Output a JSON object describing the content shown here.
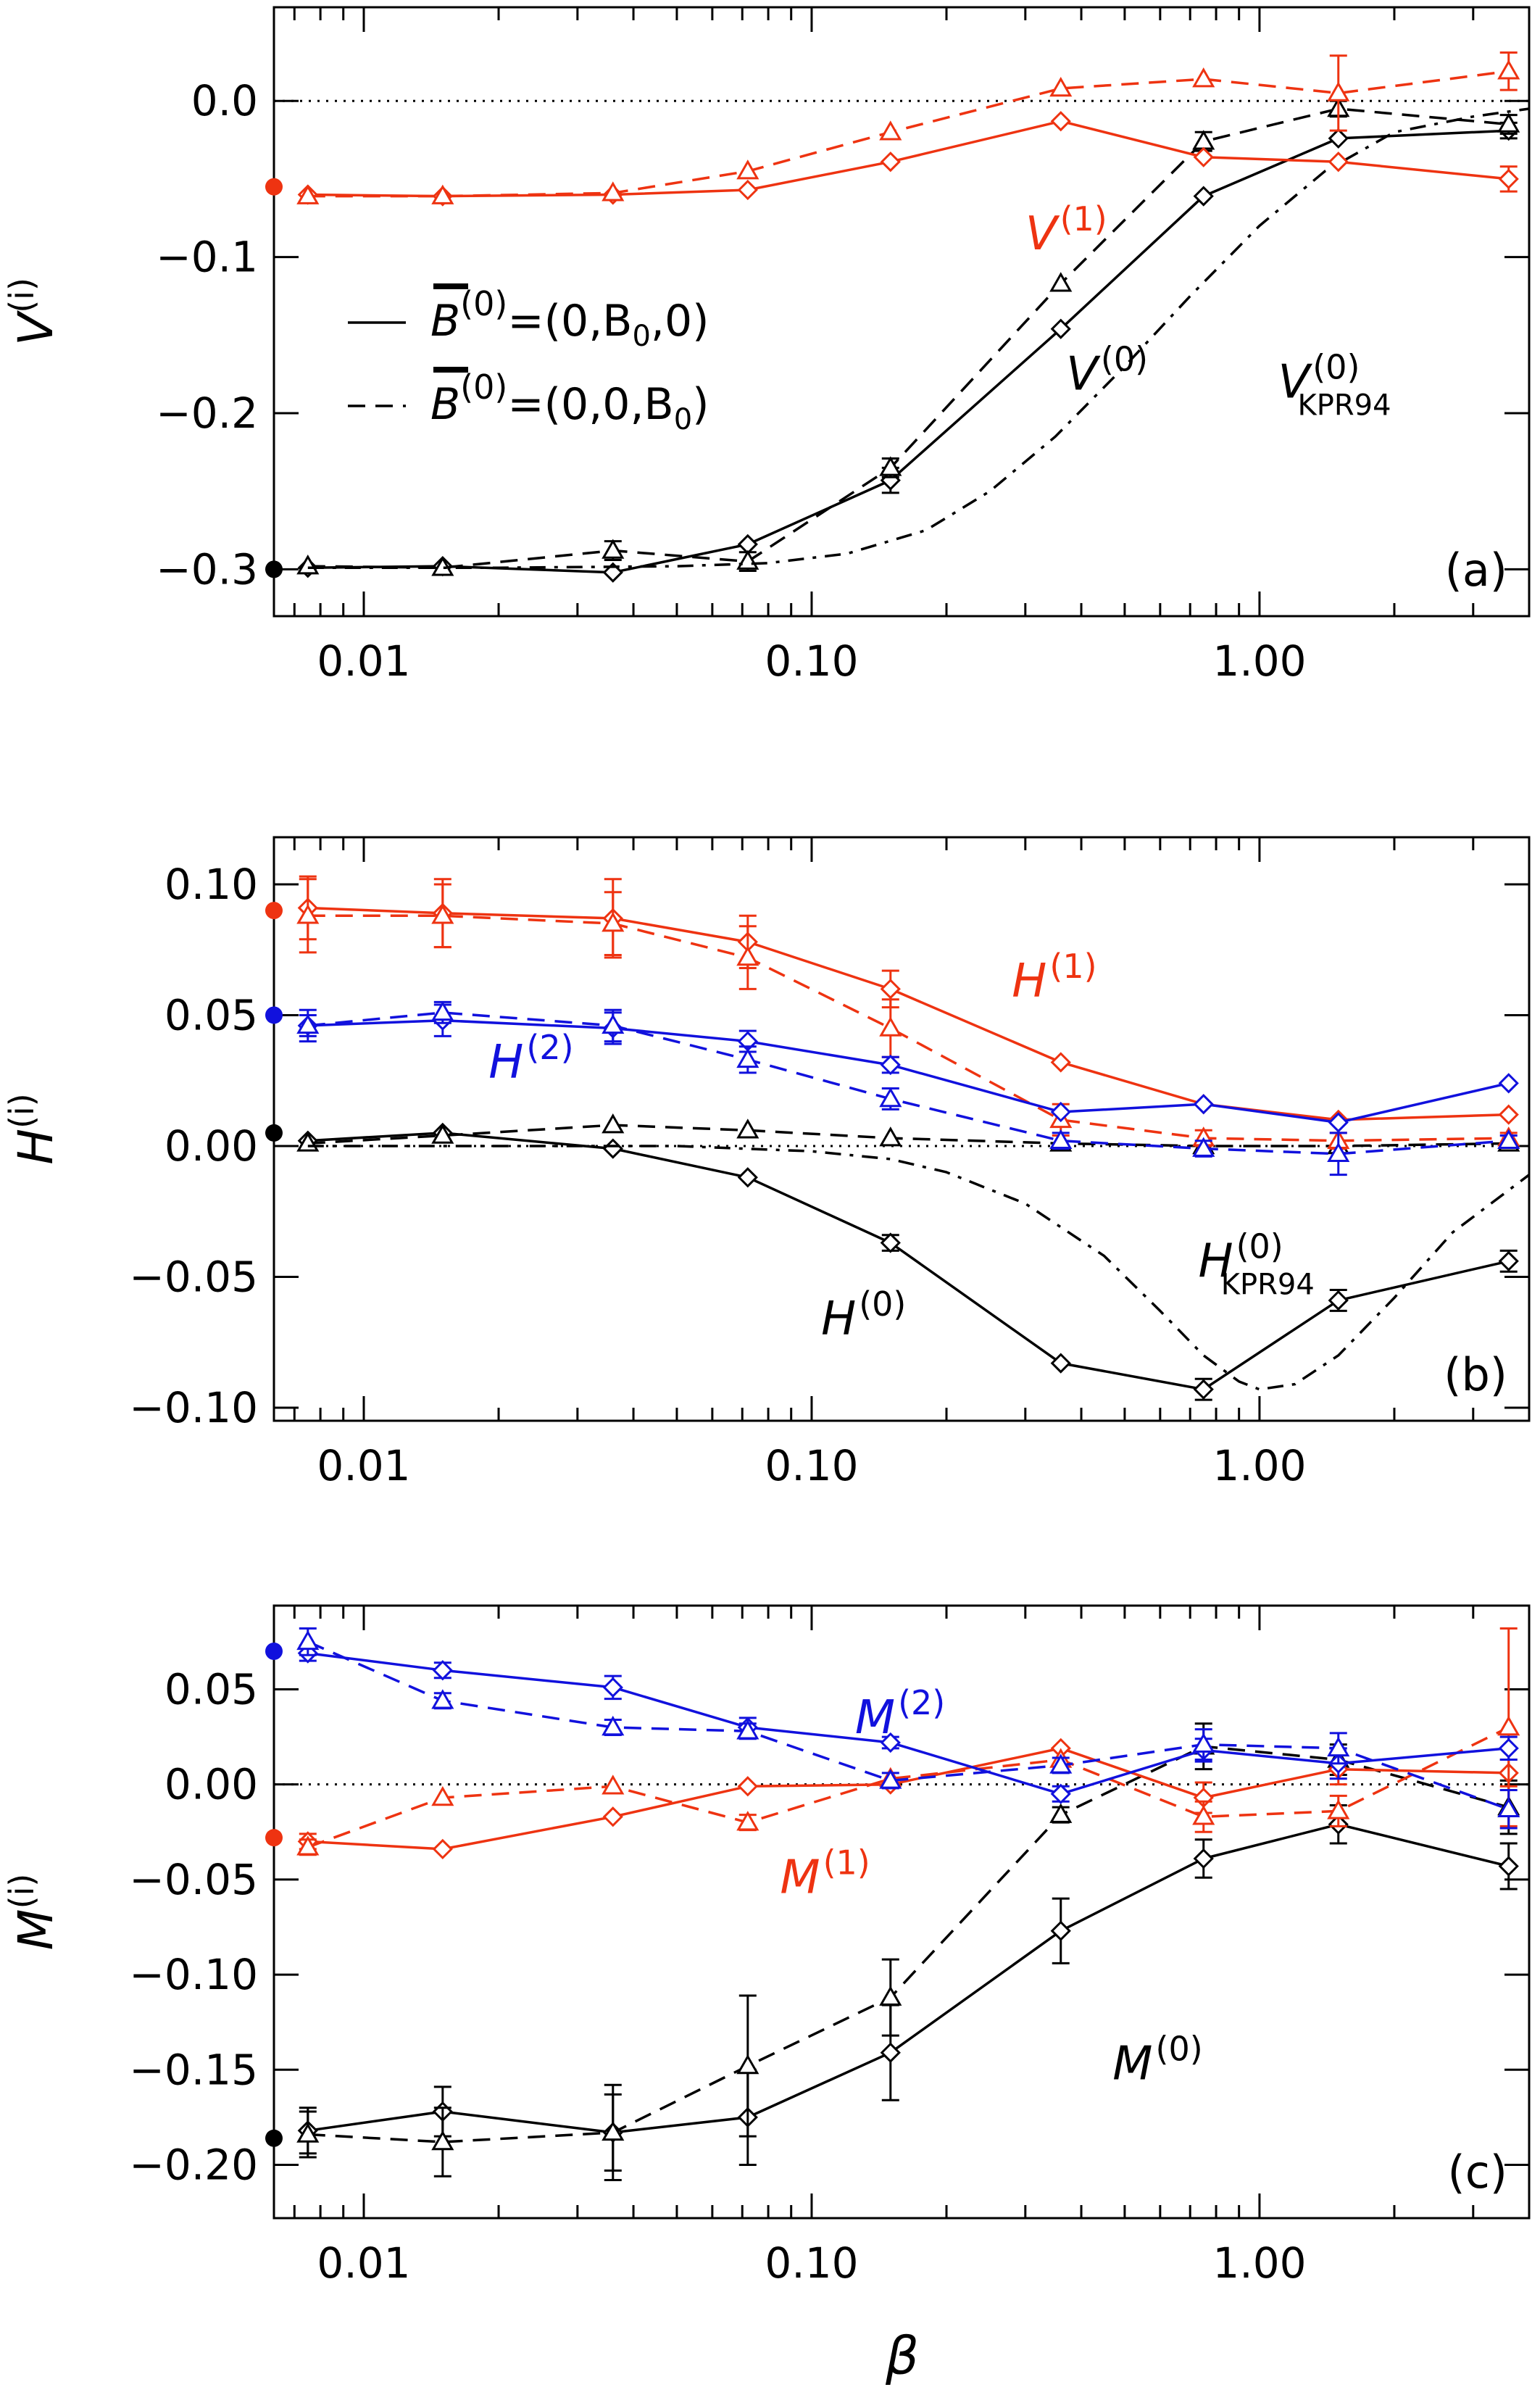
{
  "colors": {
    "black": "#000000",
    "red": "#EE3311",
    "blue": "#1111DD"
  },
  "xlabel": "β",
  "xticks": [
    {
      "value": 0.01,
      "label": "0.01"
    },
    {
      "value": 0.1,
      "label": "0.10"
    },
    {
      "value": 1.0,
      "label": "1.00"
    }
  ],
  "legend": [
    {
      "style": "solid",
      "symbol": "B",
      "sup": "(0)",
      "eq": "=(0,B",
      "sub": "0",
      "tail": ",0)"
    },
    {
      "style": "dashed",
      "symbol": "B",
      "sup": "(0)",
      "eq": "=(0,0,B",
      "sub": "0",
      "tail": ")"
    }
  ],
  "chart_data": [
    {
      "id": "a",
      "type": "line",
      "panel_label": "(a)",
      "ylabel": {
        "base": "V",
        "sup": "(i)"
      },
      "xscale": "log",
      "xlim": [
        0.0063,
        4.0
      ],
      "ylim": [
        -0.33,
        0.06
      ],
      "yticks": [
        {
          "value": 0.0,
          "label": "0.0"
        },
        {
          "value": -0.1,
          "label": "−0.1"
        },
        {
          "value": -0.2,
          "label": "−0.2"
        },
        {
          "value": -0.3,
          "label": "−0.3"
        }
      ],
      "zero_line": true,
      "annotations": [
        {
          "base": "V",
          "sup": "(1)",
          "sub": "",
          "color": "red",
          "x": 0.3,
          "y": -0.095
        },
        {
          "base": "V",
          "sup": "(0)",
          "sub": "",
          "color": "black",
          "x": 0.37,
          "y": -0.185
        },
        {
          "base": "V",
          "sup": "(0)",
          "sub": "KPR94",
          "color": "black",
          "x": 1.1,
          "y": -0.19
        }
      ],
      "reference_markers": [
        {
          "color": "red",
          "y": -0.055
        },
        {
          "color": "black",
          "y": -0.3
        }
      ],
      "series": [
        {
          "color": "black",
          "style": "solid",
          "marker": "diamond",
          "x": [
            0.0075,
            0.015,
            0.036,
            0.072,
            0.15,
            0.36,
            0.75,
            1.5,
            3.6
          ],
          "y": [
            -0.299,
            -0.298,
            -0.302,
            -0.284,
            -0.243,
            -0.146,
            -0.061,
            -0.024,
            -0.019
          ],
          "err": [
            0,
            0,
            0,
            0,
            0.008,
            0,
            0,
            0,
            0.005
          ]
        },
        {
          "color": "black",
          "style": "dashed",
          "marker": "triangle",
          "x": [
            0.0075,
            0.015,
            0.036,
            0.072,
            0.15,
            0.36,
            0.75,
            1.5,
            3.6
          ],
          "y": [
            -0.298,
            -0.299,
            -0.288,
            -0.295,
            -0.235,
            -0.117,
            -0.026,
            -0.005,
            -0.015
          ],
          "err": [
            0,
            0,
            0.006,
            0.006,
            0.006,
            0,
            0.006,
            0.005,
            0.006
          ]
        },
        {
          "color": "black",
          "style": "dashdot",
          "marker": "none",
          "x": [
            0.0075,
            0.02,
            0.05,
            0.08,
            0.12,
            0.18,
            0.25,
            0.35,
            0.5,
            0.7,
            1.0,
            1.4,
            2.0,
            3.0,
            4.0
          ],
          "y": [
            -0.299,
            -0.299,
            -0.298,
            -0.296,
            -0.29,
            -0.275,
            -0.25,
            -0.215,
            -0.17,
            -0.125,
            -0.08,
            -0.045,
            -0.02,
            -0.01,
            -0.005
          ],
          "err": []
        },
        {
          "color": "red",
          "style": "solid",
          "marker": "diamond",
          "x": [
            0.0075,
            0.015,
            0.036,
            0.072,
            0.15,
            0.36,
            0.75,
            1.5,
            3.6
          ],
          "y": [
            -0.06,
            -0.061,
            -0.06,
            -0.057,
            -0.039,
            -0.013,
            -0.036,
            -0.039,
            -0.05
          ],
          "err": [
            0,
            0,
            0,
            0,
            0,
            0,
            0,
            0,
            0.008
          ]
        },
        {
          "color": "red",
          "style": "dashed",
          "marker": "triangle",
          "x": [
            0.0075,
            0.015,
            0.036,
            0.072,
            0.15,
            0.36,
            0.75,
            1.5,
            3.6
          ],
          "y": [
            -0.061,
            -0.061,
            -0.059,
            -0.045,
            -0.02,
            0.008,
            0.014,
            0.005,
            0.019
          ],
          "err": [
            0,
            0,
            0,
            0,
            0,
            0,
            0,
            0.024,
            0.012
          ]
        }
      ]
    },
    {
      "id": "b",
      "type": "line",
      "panel_label": "(b)",
      "ylabel": {
        "base": "H",
        "sup": "(i)"
      },
      "xscale": "log",
      "xlim": [
        0.0063,
        4.0
      ],
      "ylim": [
        -0.105,
        0.118
      ],
      "yticks": [
        {
          "value": 0.1,
          "label": "0.10"
        },
        {
          "value": 0.05,
          "label": "0.05"
        },
        {
          "value": 0.0,
          "label": "0.00"
        },
        {
          "value": -0.05,
          "label": "−0.05"
        },
        {
          "value": -0.1,
          "label": "−0.10"
        }
      ],
      "zero_line": true,
      "annotations": [
        {
          "base": "H",
          "sup": "(1)",
          "sub": "",
          "color": "red",
          "x": 0.28,
          "y": 0.057
        },
        {
          "base": "H",
          "sup": "(2)",
          "sub": "",
          "color": "blue",
          "x": 0.019,
          "y": 0.026
        },
        {
          "base": "H",
          "sup": "(0)",
          "sub": "KPR94",
          "color": "black",
          "x": 0.73,
          "y": -0.05
        },
        {
          "base": "H",
          "sup": "(0)",
          "sub": "",
          "color": "black",
          "x": 0.105,
          "y": -0.072
        }
      ],
      "reference_markers": [
        {
          "color": "red",
          "y": 0.09
        },
        {
          "color": "blue",
          "y": 0.05
        },
        {
          "color": "black",
          "y": 0.005
        }
      ],
      "series": [
        {
          "color": "black",
          "style": "solid",
          "marker": "diamond",
          "x": [
            0.0075,
            0.015,
            0.036,
            0.072,
            0.15,
            0.36,
            0.75,
            1.5,
            3.6
          ],
          "y": [
            0.002,
            0.005,
            -0.001,
            -0.012,
            -0.037,
            -0.083,
            -0.093,
            -0.059,
            -0.044
          ],
          "err": [
            0,
            0,
            0,
            0,
            0.003,
            0,
            0.004,
            0.004,
            0.004
          ]
        },
        {
          "color": "black",
          "style": "dashed",
          "marker": "triangle",
          "x": [
            0.0075,
            0.015,
            0.036,
            0.072,
            0.15,
            0.36,
            0.75,
            1.5,
            3.6
          ],
          "y": [
            0.001,
            0.004,
            0.008,
            0.006,
            0.003,
            0.001,
            0.0,
            0.0,
            0.001
          ],
          "err": [
            0,
            0,
            0,
            0,
            0,
            0,
            0,
            0,
            0
          ]
        },
        {
          "color": "black",
          "style": "dashdot",
          "marker": "none",
          "x": [
            0.0075,
            0.02,
            0.05,
            0.1,
            0.15,
            0.2,
            0.3,
            0.45,
            0.6,
            0.75,
            0.9,
            1.0,
            1.2,
            1.5,
            2.0,
            2.7,
            4.0
          ],
          "y": [
            0.0,
            0.0,
            0.0,
            -0.002,
            -0.005,
            -0.01,
            -0.022,
            -0.042,
            -0.063,
            -0.08,
            -0.09,
            -0.093,
            -0.091,
            -0.08,
            -0.058,
            -0.033,
            -0.011
          ],
          "err": []
        },
        {
          "color": "red",
          "style": "solid",
          "marker": "diamond",
          "x": [
            0.0075,
            0.015,
            0.036,
            0.072,
            0.15,
            0.36,
            0.75,
            1.5,
            3.6
          ],
          "y": [
            0.091,
            0.089,
            0.087,
            0.078,
            0.06,
            0.032,
            0.016,
            0.01,
            0.012
          ],
          "err": [
            0.012,
            0.013,
            0.015,
            0.01,
            0.007,
            0,
            0,
            0,
            0
          ]
        },
        {
          "color": "red",
          "style": "dashed",
          "marker": "triangle",
          "x": [
            0.0075,
            0.015,
            0.036,
            0.072,
            0.15,
            0.36,
            0.75,
            1.5,
            3.6
          ],
          "y": [
            0.088,
            0.088,
            0.085,
            0.072,
            0.045,
            0.01,
            0.003,
            0.002,
            0.003
          ],
          "err": [
            0.014,
            0.012,
            0.012,
            0.012,
            0.011,
            0.006,
            0.003,
            0.003,
            0.002
          ]
        },
        {
          "color": "blue",
          "style": "solid",
          "marker": "diamond",
          "x": [
            0.0075,
            0.015,
            0.036,
            0.072,
            0.15,
            0.36,
            0.75,
            1.5,
            3.6
          ],
          "y": [
            0.046,
            0.048,
            0.045,
            0.04,
            0.031,
            0.013,
            0.016,
            0.009,
            0.024
          ],
          "err": [
            0.006,
            0.006,
            0.006,
            0.004,
            0.003,
            0,
            0,
            0,
            0
          ]
        },
        {
          "color": "blue",
          "style": "dashed",
          "marker": "triangle",
          "x": [
            0.0075,
            0.015,
            0.036,
            0.072,
            0.15,
            0.36,
            0.75,
            1.5,
            3.6
          ],
          "y": [
            0.046,
            0.051,
            0.046,
            0.033,
            0.018,
            0.002,
            -0.001,
            -0.003,
            0.002
          ],
          "err": [
            0.004,
            0.004,
            0.006,
            0.005,
            0.004,
            0.003,
            0.003,
            0.008,
            0.002
          ]
        }
      ]
    },
    {
      "id": "c",
      "type": "line",
      "panel_label": "(c)",
      "ylabel": {
        "base": "M",
        "sup": "(i)"
      },
      "xscale": "log",
      "xlim": [
        0.0063,
        4.0
      ],
      "ylim": [
        -0.228,
        0.094
      ],
      "yticks": [
        {
          "value": 0.05,
          "label": "0.05"
        },
        {
          "value": 0.0,
          "label": "0.00"
        },
        {
          "value": -0.05,
          "label": "−0.05"
        },
        {
          "value": -0.1,
          "label": "−0.10"
        },
        {
          "value": -0.15,
          "label": "−0.15"
        },
        {
          "value": -0.2,
          "label": "−0.20"
        }
      ],
      "zero_line": true,
      "annotations": [
        {
          "base": "M",
          "sup": "(2)",
          "sub": "",
          "color": "blue",
          "x": 0.125,
          "y": 0.027
        },
        {
          "base": "M",
          "sup": "(1)",
          "sub": "",
          "color": "red",
          "x": 0.085,
          "y": -0.057
        },
        {
          "base": "M",
          "sup": "(0)",
          "sub": "",
          "color": "black",
          "x": 0.47,
          "y": -0.155
        }
      ],
      "reference_markers": [
        {
          "color": "blue",
          "y": 0.07
        },
        {
          "color": "red",
          "y": -0.028
        },
        {
          "color": "black",
          "y": -0.186
        }
      ],
      "series": [
        {
          "color": "black",
          "style": "solid",
          "marker": "diamond",
          "x": [
            0.0075,
            0.015,
            0.036,
            0.072,
            0.15,
            0.36,
            0.75,
            1.5,
            3.6
          ],
          "y": [
            -0.182,
            -0.172,
            -0.183,
            -0.175,
            -0.141,
            -0.077,
            -0.039,
            -0.021,
            -0.043
          ],
          "err": [
            0.012,
            0.013,
            0.02,
            0.025,
            0.025,
            0.017,
            0.01,
            0.01,
            0.012
          ]
        },
        {
          "color": "black",
          "style": "dashed",
          "marker": "triangle",
          "x": [
            0.0075,
            0.015,
            0.036,
            0.072,
            0.15,
            0.36,
            0.75,
            1.5,
            3.6
          ],
          "y": [
            -0.184,
            -0.188,
            -0.183,
            -0.148,
            -0.112,
            -0.016,
            0.02,
            0.013,
            -0.012
          ],
          "err": [
            0.012,
            0.018,
            0.025,
            0.037,
            0.02,
            0.004,
            0.012,
            0.008,
            0.014
          ]
        },
        {
          "color": "red",
          "style": "solid",
          "marker": "diamond",
          "x": [
            0.0075,
            0.015,
            0.036,
            0.072,
            0.15,
            0.36,
            0.75,
            1.5,
            3.6
          ],
          "y": [
            -0.03,
            -0.034,
            -0.017,
            -0.001,
            0.0,
            0.019,
            -0.007,
            0.008,
            0.006
          ],
          "err": [
            0.004,
            0,
            0,
            0,
            0,
            0,
            0.008,
            0.008,
            0.007
          ]
        },
        {
          "color": "red",
          "style": "dashed",
          "marker": "triangle",
          "x": [
            0.0075,
            0.015,
            0.036,
            0.072,
            0.15,
            0.36,
            0.75,
            1.5,
            3.6
          ],
          "y": [
            -0.033,
            -0.007,
            -0.001,
            -0.02,
            0.003,
            0.013,
            -0.017,
            -0.014,
            0.03
          ],
          "err": [
            0.004,
            0,
            0,
            0.004,
            0,
            0,
            0.008,
            0.008,
            0.052
          ]
        },
        {
          "color": "blue",
          "style": "solid",
          "marker": "diamond",
          "x": [
            0.0075,
            0.015,
            0.036,
            0.072,
            0.15,
            0.36,
            0.75,
            1.5,
            3.6
          ],
          "y": [
            0.069,
            0.06,
            0.051,
            0.03,
            0.022,
            -0.005,
            0.018,
            0.011,
            0.019
          ],
          "err": [
            0.004,
            0.004,
            0.006,
            0.005,
            0.003,
            0.004,
            0.006,
            0.008,
            0.006
          ]
        },
        {
          "color": "blue",
          "style": "dashed",
          "marker": "triangle",
          "x": [
            0.0075,
            0.015,
            0.036,
            0.072,
            0.15,
            0.36,
            0.75,
            1.5,
            3.6
          ],
          "y": [
            0.075,
            0.044,
            0.03,
            0.028,
            0.002,
            0.01,
            0.021,
            0.019,
            -0.013
          ],
          "err": [
            0.007,
            0.004,
            0.004,
            0.004,
            0.004,
            0.004,
            0.008,
            0.008,
            0.01
          ]
        }
      ]
    }
  ]
}
